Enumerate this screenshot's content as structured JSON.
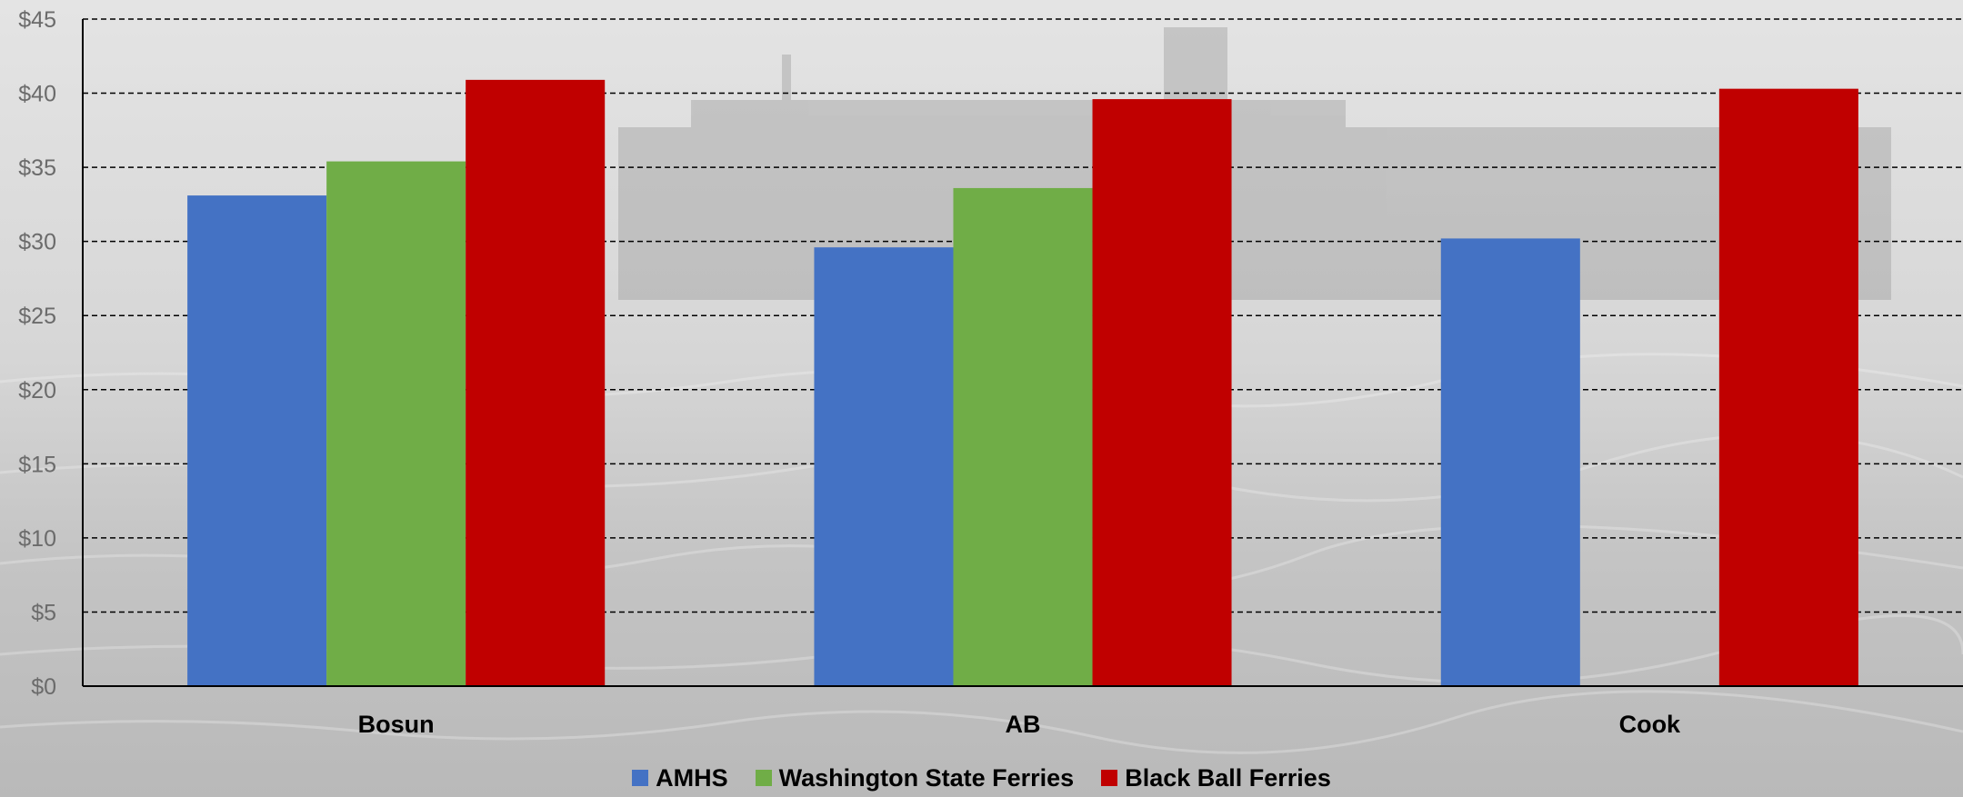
{
  "chart_data": {
    "type": "bar",
    "categories": [
      "Bosun",
      "AB",
      "Cook"
    ],
    "series": [
      {
        "name": "AMHS",
        "color": "#4472C4",
        "values": [
          33.1,
          29.6,
          30.2
        ]
      },
      {
        "name": "Washington State Ferries",
        "color": "#70AD47",
        "values": [
          35.4,
          33.6,
          null
        ]
      },
      {
        "name": "Black Ball Ferries",
        "color": "#C00000",
        "values": [
          40.9,
          39.6,
          40.3
        ]
      }
    ],
    "y_ticks": [
      "$0",
      "$5",
      "$10",
      "$15",
      "$20",
      "$25",
      "$30",
      "$35",
      "$40",
      "$45"
    ],
    "ylim": [
      0,
      45
    ],
    "grid": true,
    "grid_style": "dashed",
    "legend_position": "bottom",
    "title": "",
    "xlabel": "",
    "ylabel": ""
  }
}
